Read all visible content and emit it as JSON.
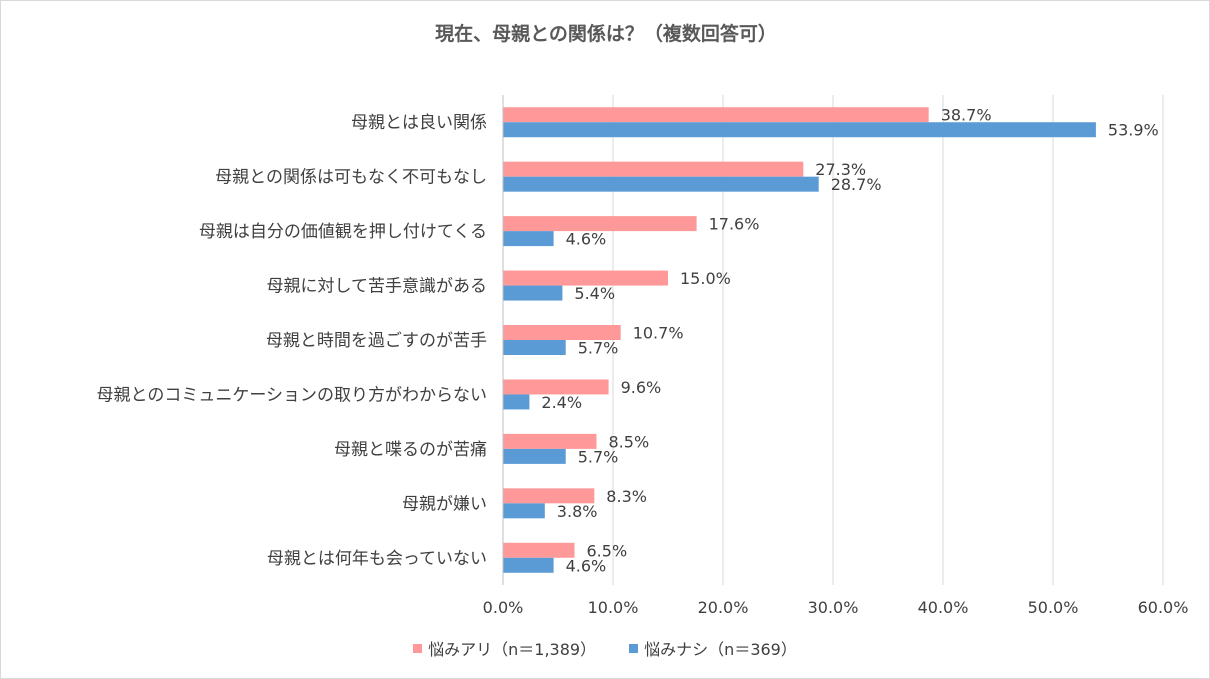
{
  "chart_data": {
    "type": "bar",
    "orientation": "horizontal",
    "title": "現在、母親との関係は？（複数回答可）",
    "categories": [
      "母親とは良い関係",
      "母親との関係は可もなく不可もなし",
      "母親は自分の価値観を押し付けてくる",
      "母親に対して苦手意識がある",
      "母親と時間を過ごすのが苦手",
      "母親とのコミュニケーションの取り方がわからない",
      "母親と喋るのが苦痛",
      "母親が嫌い",
      "母親とは何年も会っていない"
    ],
    "series": [
      {
        "name": "悩みアリ（n＝1,389）",
        "color": "#ff9999",
        "values": [
          38.7,
          27.3,
          17.6,
          15.0,
          10.7,
          9.6,
          8.5,
          8.3,
          6.5
        ],
        "labels": [
          "38.7%",
          "27.3%",
          "17.6%",
          "15.0%",
          "10.7%",
          "9.6%",
          "8.5%",
          "8.3%",
          "6.5%"
        ]
      },
      {
        "name": "悩みナシ（n＝369）",
        "color": "#5b9bd5",
        "values": [
          53.9,
          28.7,
          4.6,
          5.4,
          5.7,
          2.4,
          5.7,
          3.8,
          4.6
        ],
        "labels": [
          "53.9%",
          "28.7%",
          "4.6%",
          "5.4%",
          "5.7%",
          "2.4%",
          "5.7%",
          "3.8%",
          "4.6%"
        ]
      }
    ],
    "xlim": [
      0,
      60
    ],
    "ticks": [
      0,
      10,
      20,
      30,
      40,
      50,
      60
    ],
    "tick_labels": [
      "0.0%",
      "10.0%",
      "20.0%",
      "30.0%",
      "40.0%",
      "50.0%",
      "60.0%"
    ],
    "grid": true,
    "legend_position": "bottom"
  }
}
